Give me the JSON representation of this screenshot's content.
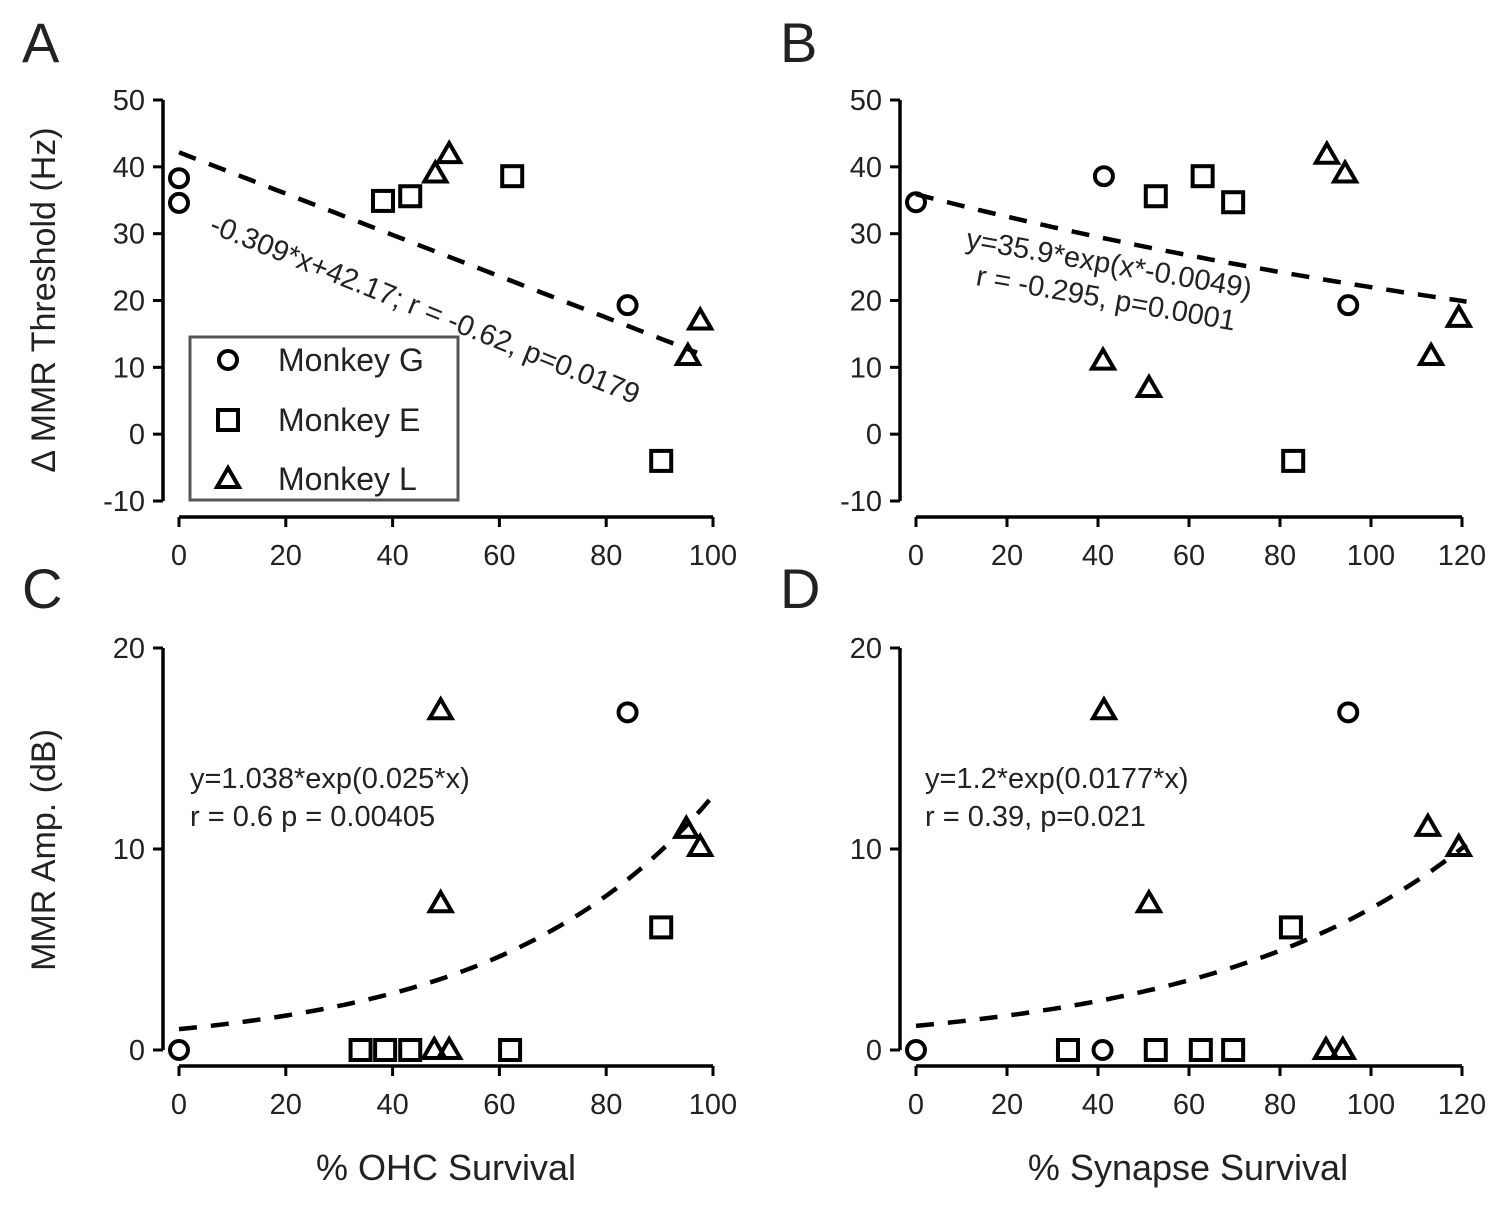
{
  "chart_data": [
    {
      "panel": "A",
      "type": "scatter",
      "xlabel": "",
      "ylabel": "Δ MMR Threshold (Hz)",
      "xlim": [
        0,
        100
      ],
      "ylim": [
        -10,
        50
      ],
      "xticks": [
        0,
        20,
        40,
        60,
        80,
        100
      ],
      "yticks": [
        -10,
        0,
        10,
        20,
        30,
        40,
        50
      ],
      "series": [
        {
          "name": "Monkey G",
          "marker": "circle",
          "points": [
            [
              0,
              38.3
            ],
            [
              0,
              34.6
            ],
            [
              84,
              19.3
            ]
          ]
        },
        {
          "name": "Monkey E",
          "marker": "square",
          "points": [
            [
              38.2,
              34.9
            ],
            [
              43.3,
              35.6
            ],
            [
              62.4,
              38.6
            ],
            [
              90.3,
              -4
            ]
          ]
        },
        {
          "name": "Monkey L",
          "marker": "triangle",
          "points": [
            [
              48,
              39
            ],
            [
              50.6,
              41.9
            ],
            [
              97.6,
              17
            ],
            [
              95.3,
              11.7
            ]
          ]
        }
      ],
      "fit": {
        "kind": "linear",
        "a": -0.309,
        "b": 42.17,
        "xrange": [
          0,
          97
        ]
      },
      "annotation": [
        "-0.309*x+42.17; r = -0.62, p=0.0179"
      ],
      "legend": {
        "placement": "bottom-left",
        "entries": [
          "Monkey G",
          "Monkey E",
          "Monkey L"
        ]
      }
    },
    {
      "panel": "B",
      "type": "scatter",
      "xlabel": "",
      "ylabel": "",
      "xlim": [
        0,
        120
      ],
      "ylim": [
        -10,
        50
      ],
      "xticks": [
        0,
        20,
        40,
        60,
        80,
        100,
        120
      ],
      "yticks": [
        -10,
        0,
        10,
        20,
        30,
        40,
        50
      ],
      "series": [
        {
          "name": "Monkey G",
          "marker": "circle",
          "points": [
            [
              0,
              34.7
            ],
            [
              41.3,
              38.6
            ],
            [
              95,
              19.3
            ]
          ]
        },
        {
          "name": "Monkey E",
          "marker": "square",
          "points": [
            [
              52.7,
              35.6
            ],
            [
              63,
              38.6
            ],
            [
              69.7,
              34.7
            ],
            [
              82.9,
              -4
            ]
          ]
        },
        {
          "name": "Monkey L",
          "marker": "triangle",
          "points": [
            [
              41.1,
              11
            ],
            [
              51.2,
              6.9
            ],
            [
              90.3,
              41.8
            ],
            [
              94.3,
              39
            ],
            [
              113.2,
              11.7
            ],
            [
              119.3,
              17.4
            ]
          ]
        }
      ],
      "fit": {
        "kind": "exp",
        "a": 35.9,
        "b": -0.0049,
        "xrange": [
          0,
          121
        ]
      },
      "annotation": [
        "y=35.9*exp(x*-0.0049)",
        "r = -0.295, p=0.0001"
      ]
    },
    {
      "panel": "C",
      "type": "scatter",
      "xlabel": "% OHC Survival",
      "ylabel": "MMR Amp. (dB)",
      "xlim": [
        0,
        100
      ],
      "ylim": [
        0,
        20
      ],
      "xticks": [
        0,
        20,
        40,
        60,
        80,
        100
      ],
      "yticks": [
        0,
        10,
        20
      ],
      "series": [
        {
          "name": "Monkey G",
          "marker": "circle",
          "points": [
            [
              0,
              0
            ],
            [
              84,
              16.8
            ]
          ]
        },
        {
          "name": "Monkey E",
          "marker": "square",
          "points": [
            [
              34,
              0
            ],
            [
              38.6,
              0
            ],
            [
              43.3,
              0
            ],
            [
              62,
              0
            ],
            [
              90.3,
              6.1
            ]
          ]
        },
        {
          "name": "Monkey L",
          "marker": "triangle",
          "points": [
            [
              49,
              16.9
            ],
            [
              49,
              7.3
            ],
            [
              47.8,
              0
            ],
            [
              50.6,
              0
            ],
            [
              95,
              11
            ],
            [
              97.6,
              10.1
            ]
          ]
        }
      ],
      "fit": {
        "kind": "exp",
        "a": 1.038,
        "b": 0.025,
        "xrange": [
          0,
          100
        ]
      },
      "annotation": [
        "y=1.038*exp(0.025*x)",
        "r = 0.6 p = 0.00405"
      ]
    },
    {
      "panel": "D",
      "type": "scatter",
      "xlabel": "% Synapse Survival",
      "ylabel": "",
      "xlim": [
        0,
        120
      ],
      "ylim": [
        0,
        20
      ],
      "xticks": [
        0,
        20,
        40,
        60,
        80,
        100,
        120
      ],
      "yticks": [
        0,
        10,
        20
      ],
      "series": [
        {
          "name": "Monkey G",
          "marker": "circle",
          "points": [
            [
              0,
              0
            ],
            [
              41,
              0
            ],
            [
              95,
              16.8
            ]
          ]
        },
        {
          "name": "Monkey E",
          "marker": "square",
          "points": [
            [
              33.4,
              0
            ],
            [
              52.7,
              0
            ],
            [
              62.6,
              0
            ],
            [
              69.7,
              0
            ],
            [
              82.4,
              6.1
            ]
          ]
        },
        {
          "name": "Monkey L",
          "marker": "triangle",
          "points": [
            [
              41.3,
              16.9
            ],
            [
              51.2,
              7.3
            ],
            [
              90.1,
              0
            ],
            [
              93.8,
              0
            ],
            [
              112.5,
              11.1
            ],
            [
              119.3,
              10.1
            ]
          ]
        }
      ],
      "fit": {
        "kind": "exp",
        "a": 1.2,
        "b": 0.0177,
        "xrange": [
          0,
          121
        ]
      },
      "annotation": [
        "y=1.2*exp(0.0177*x)",
        "r = 0.39, p=0.021"
      ]
    }
  ]
}
